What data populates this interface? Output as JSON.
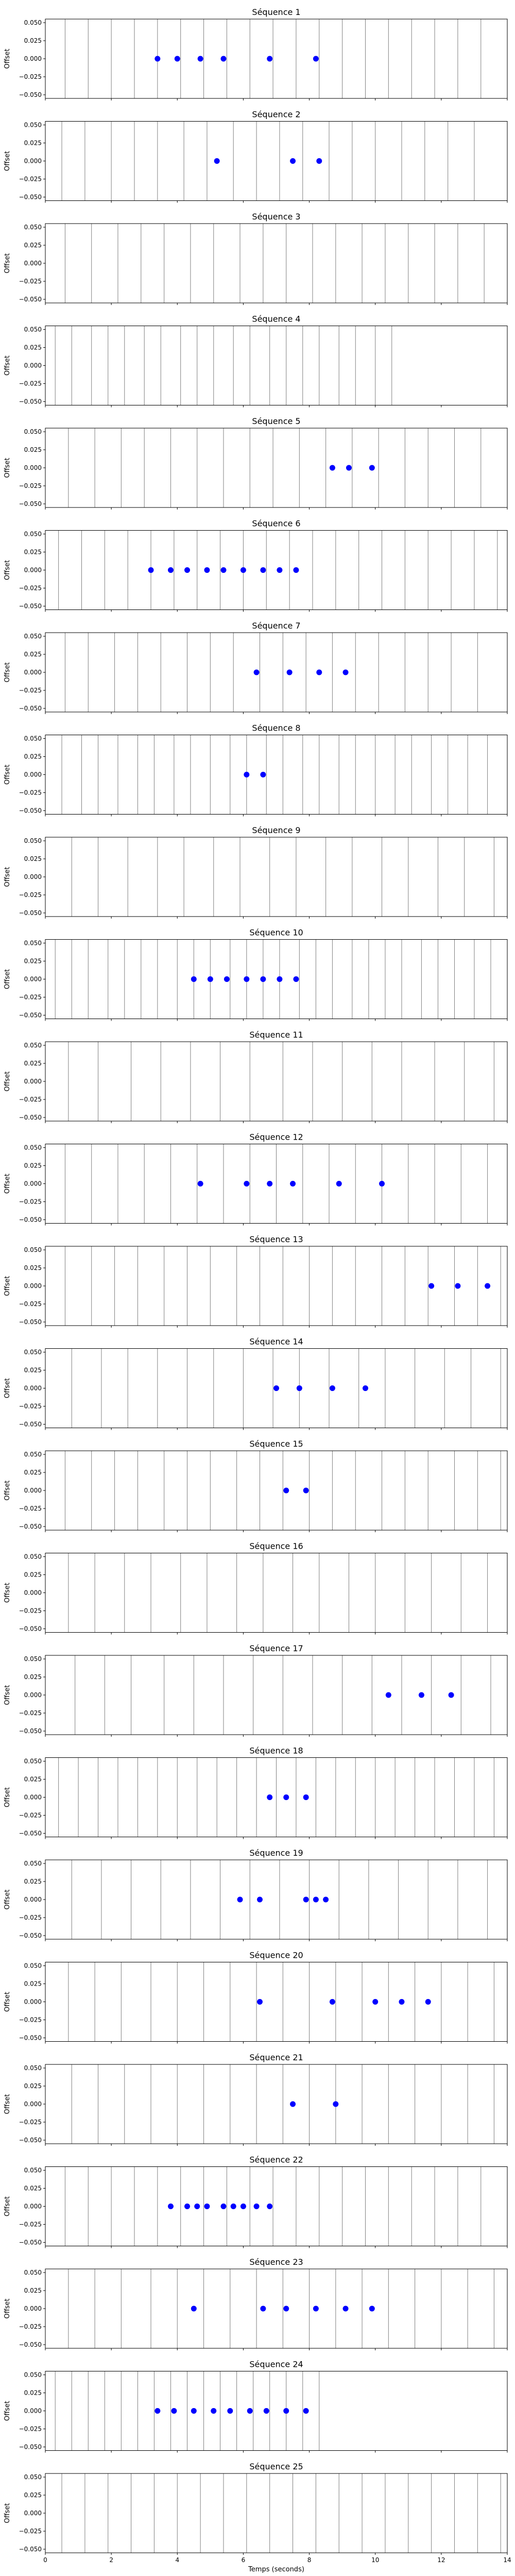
{
  "chart_data": {
    "type": "scatter",
    "xlabel": "Temps (seconds)",
    "ylabel": "Offset",
    "xlim": [
      0,
      14
    ],
    "ylim": [
      -0.055,
      0.055
    ],
    "x_ticks": [
      "0",
      "2",
      "4",
      "6",
      "8",
      "10",
      "12",
      "14"
    ],
    "y_ticks": [
      "0.050",
      "0.025",
      "0.000",
      "−0.025",
      "−0.050"
    ],
    "colors": {
      "point": "#0000ff",
      "vertical_line": "#808080"
    },
    "panels": [
      {
        "title": "Séquence 1",
        "lines": [
          0.6,
          1.3,
          2.0,
          2.7,
          3.4,
          4.1,
          4.8,
          5.5,
          6.2,
          6.9,
          7.6,
          8.3,
          9.0,
          9.7,
          10.4,
          11.1,
          11.8,
          12.5,
          13.2
        ],
        "points": [
          3.4,
          4.0,
          4.7,
          5.4,
          6.8,
          8.2
        ]
      },
      {
        "title": "Séquence 2",
        "lines": [
          0.5,
          1.2,
          2.0,
          2.7,
          3.4,
          4.2,
          4.9,
          5.7,
          6.4,
          7.1,
          7.8,
          8.6,
          9.3,
          10.0,
          10.8,
          11.5,
          12.2,
          13.0
        ],
        "points": [
          5.2,
          7.5,
          8.3
        ]
      },
      {
        "title": "Séquence 3",
        "lines": [
          0.6,
          1.4,
          2.2,
          2.9,
          3.6,
          4.4,
          5.1,
          5.9,
          6.6,
          7.3,
          8.1,
          8.8,
          9.6,
          10.3,
          11.0,
          11.8,
          12.5,
          13.3
        ],
        "points": []
      },
      {
        "title": "Séquence 4",
        "lines": [
          0.3,
          0.8,
          1.4,
          1.9,
          2.4,
          3.0,
          3.5,
          4.1,
          4.6,
          5.1,
          5.7,
          6.2,
          6.8,
          7.3,
          7.8,
          8.3,
          8.9,
          9.4,
          10.0,
          10.5
        ],
        "points": []
      },
      {
        "title": "Séquence 5",
        "lines": [
          0.7,
          1.5,
          2.3,
          3.0,
          3.8,
          4.6,
          5.4,
          6.2,
          6.9,
          7.7,
          8.5,
          9.3,
          10.1,
          10.9,
          11.6,
          12.4,
          13.2
        ],
        "points": [
          8.7,
          9.2,
          9.9
        ]
      },
      {
        "title": "Séquence 6",
        "lines": [
          0.4,
          1.1,
          1.8,
          2.5,
          3.2,
          3.9,
          4.6,
          5.3,
          6.0,
          6.7,
          7.4,
          8.1,
          8.8,
          9.5,
          10.2,
          10.9,
          11.6,
          12.3,
          13.0,
          13.7
        ],
        "points": [
          3.2,
          3.8,
          4.3,
          4.9,
          5.4,
          6.0,
          6.6,
          7.1,
          7.6
        ]
      },
      {
        "title": "Séquence 7",
        "lines": [
          0.6,
          1.3,
          2.1,
          2.8,
          3.5,
          4.3,
          5.0,
          5.7,
          6.5,
          7.2,
          7.9,
          8.7,
          9.4,
          10.1,
          10.9,
          11.6,
          12.3,
          13.1
        ],
        "points": [
          6.4,
          7.4,
          8.3,
          9.1
        ]
      },
      {
        "title": "Séquence 8",
        "lines": [
          0.5,
          1.1,
          1.6,
          2.2,
          2.8,
          3.3,
          3.9,
          4.4,
          5.0,
          5.6,
          6.1,
          6.7,
          7.2,
          7.8,
          8.3,
          8.9,
          9.4,
          10.0,
          10.6,
          11.1,
          11.7,
          12.2,
          12.8,
          13.4
        ],
        "points": [
          6.1,
          6.6
        ]
      },
      {
        "title": "Séquence 9",
        "lines": [
          0.8,
          1.6,
          2.5,
          3.4,
          4.2,
          5.1,
          5.9,
          6.8,
          7.6,
          8.5,
          9.3,
          10.2,
          11.0,
          11.9,
          12.7,
          13.6
        ],
        "points": []
      },
      {
        "title": "Séquence 10",
        "lines": [
          0.3,
          0.8,
          1.3,
          1.9,
          2.4,
          2.9,
          3.4,
          4.0,
          4.5,
          5.0,
          5.6,
          6.1,
          6.6,
          7.1,
          7.7,
          8.2,
          8.7,
          9.3,
          9.8,
          10.3,
          10.8,
          11.4,
          11.9,
          12.4,
          13.0,
          13.5
        ],
        "points": [
          4.5,
          5.0,
          5.5,
          6.1,
          6.6,
          7.1,
          7.6
        ]
      },
      {
        "title": "Séquence 11",
        "lines": [
          0.7,
          1.6,
          2.6,
          3.5,
          4.4,
          5.3,
          6.2,
          7.2,
          8.1,
          9.0,
          9.9,
          10.8,
          11.8,
          12.7,
          13.6
        ],
        "points": []
      },
      {
        "title": "Séquence 12",
        "lines": [
          0.6,
          1.4,
          2.2,
          3.0,
          3.8,
          4.6,
          5.4,
          6.2,
          7.0,
          7.8,
          8.6,
          9.4,
          10.2,
          11.0,
          11.8,
          12.6,
          13.4
        ],
        "points": [
          4.7,
          6.1,
          6.8,
          7.5,
          8.9,
          10.2
        ]
      },
      {
        "title": "Séquence 13",
        "lines": [
          0.6,
          1.4,
          2.1,
          2.8,
          3.6,
          4.3,
          5.0,
          5.8,
          6.5,
          7.2,
          8.0,
          8.7,
          9.4,
          10.2,
          10.9,
          11.6,
          12.4,
          13.1,
          13.8
        ],
        "points": [
          11.7,
          12.5,
          13.4
        ]
      },
      {
        "title": "Séquence 14",
        "lines": [
          0.8,
          1.7,
          2.5,
          3.4,
          4.3,
          5.1,
          6.0,
          6.9,
          7.7,
          8.6,
          9.5,
          10.3,
          11.2,
          12.1,
          12.9,
          13.8
        ],
        "points": [
          7.0,
          7.7,
          8.7,
          9.7
        ]
      },
      {
        "title": "Séquence 15",
        "lines": [
          0.6,
          1.4,
          2.1,
          2.8,
          3.6,
          4.3,
          5.0,
          5.8,
          6.5,
          7.2,
          8.0,
          8.7,
          9.4,
          10.2,
          10.9,
          11.6,
          12.4,
          13.1,
          13.8
        ],
        "points": [
          7.3,
          7.9
        ]
      },
      {
        "title": "Séquence 16",
        "lines": [
          0.7,
          1.5,
          2.4,
          3.2,
          4.1,
          4.9,
          5.8,
          6.6,
          7.5,
          8.3,
          9.2,
          10.0,
          10.9,
          11.7,
          12.6,
          13.4
        ],
        "points": []
      },
      {
        "title": "Séquence 17",
        "lines": [
          0.9,
          1.8,
          2.6,
          3.6,
          4.5,
          5.4,
          6.3,
          7.2,
          8.1,
          9.0,
          9.9,
          10.8,
          11.7,
          12.6,
          13.5
        ],
        "points": [
          10.4,
          11.4,
          12.3
        ]
      },
      {
        "title": "Séquence 18",
        "lines": [
          0.4,
          1.0,
          1.6,
          2.2,
          2.8,
          3.4,
          4.0,
          4.6,
          5.2,
          5.8,
          6.4,
          7.0,
          7.6,
          8.2,
          8.8,
          9.4,
          10.0,
          10.6,
          11.2,
          11.8,
          12.4,
          13.0,
          13.6
        ],
        "points": [
          6.8,
          7.3,
          7.9
        ]
      },
      {
        "title": "Séquence 19",
        "lines": [
          0.8,
          1.7,
          2.6,
          3.5,
          4.4,
          5.3,
          6.2,
          7.1,
          8.0,
          8.9,
          9.8,
          10.7,
          11.6,
          12.5,
          13.4
        ],
        "points": [
          5.9,
          6.5,
          7.9,
          8.2,
          8.5
        ]
      },
      {
        "title": "Séquence 20",
        "lines": [
          0.7,
          1.5,
          2.3,
          3.2,
          4.0,
          4.8,
          5.6,
          6.4,
          7.2,
          8.0,
          8.8,
          9.6,
          10.4,
          11.2,
          12.0,
          12.8,
          13.6
        ],
        "points": [
          6.5,
          8.7,
          10.0,
          10.8,
          11.6
        ]
      },
      {
        "title": "Séquence 21",
        "lines": [
          0.8,
          1.6,
          2.4,
          3.2,
          4.0,
          4.8,
          5.6,
          6.4,
          7.2,
          8.0,
          8.8,
          9.6,
          10.4,
          11.2,
          12.0,
          12.8,
          13.6
        ],
        "points": [
          7.5,
          8.8
        ]
      },
      {
        "title": "Séquence 22",
        "lines": [
          0.6,
          1.3,
          2.0,
          2.7,
          3.4,
          4.1,
          4.8,
          5.5,
          6.2,
          6.9,
          7.6,
          8.3,
          9.0,
          9.7,
          10.4,
          11.1,
          11.8,
          12.5,
          13.2
        ],
        "points": [
          3.8,
          4.3,
          4.6,
          4.9,
          5.4,
          5.7,
          6.0,
          6.4,
          6.8
        ]
      },
      {
        "title": "Séquence 23",
        "lines": [
          0.7,
          1.5,
          2.3,
          3.2,
          4.0,
          4.8,
          5.6,
          6.4,
          7.2,
          8.0,
          8.8,
          9.6,
          10.4,
          11.2,
          12.0,
          12.8,
          13.6
        ],
        "points": [
          4.5,
          6.6,
          7.3,
          8.2,
          9.1,
          9.9
        ]
      },
      {
        "title": "Séquence 24",
        "lines": [
          0.3,
          0.8,
          1.3,
          1.8,
          2.3,
          2.8,
          3.3,
          3.8,
          4.3,
          4.8,
          5.3,
          5.8,
          6.3,
          6.8,
          7.3,
          7.8,
          8.3
        ],
        "points": [
          3.4,
          3.9,
          4.5,
          5.1,
          5.6,
          6.2,
          6.7,
          7.3,
          7.9
        ]
      },
      {
        "title": "Séquence 25",
        "lines": [
          0.5,
          1.2,
          1.9,
          2.6,
          3.3,
          4.0,
          4.7,
          5.4,
          6.1,
          6.8,
          7.5,
          8.2,
          8.9,
          9.6,
          10.3,
          11.0,
          11.7,
          12.4,
          13.1,
          13.8
        ],
        "points": []
      }
    ]
  }
}
